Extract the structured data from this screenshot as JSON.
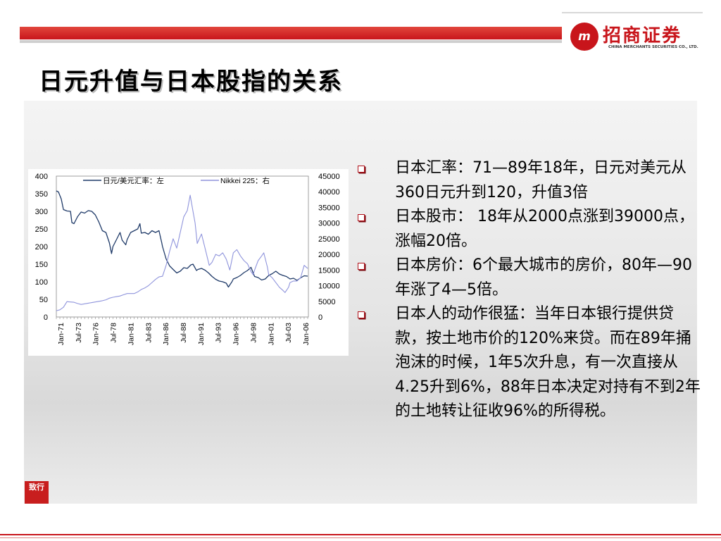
{
  "header": {
    "logo_mark": "m",
    "logo_cn": "招商证券",
    "logo_en": "CHINA MERCHANTS SECURITIES CO., LTD.",
    "title": "日元升值与日本股指的关系",
    "brand_color": "#c8151b"
  },
  "bullets": [
    "日本汇率：71—89年18年，日元对美元从360日元升到120，升值3倍",
    "日本股市： 18年从2000点涨到39000点，涨幅20倍。",
    "日本房价：6个最大城市的房价，80年—90年涨了4—5倍。",
    "日本人的动作很猛：当年日本银行提供贷款，按土地市价的120%来贷。而在89年捅泡沫的时候，1年5次升息，有一次直接从4.25升到6%，88年日本决定对持有不到2年的土地转让征收96%的所得税。"
  ],
  "stamp": "致行",
  "chart_data": {
    "type": "line",
    "categories": [
      "Jan-71",
      "Jul-73",
      "Jan-76",
      "Jul-78",
      "Jan-81",
      "Jul-83",
      "Jan-86",
      "Jul-88",
      "Jan-91",
      "Jul-93",
      "Jan-96",
      "Jul-98",
      "Jan-01",
      "Jul-03",
      "Jan-06"
    ],
    "y_left_ticks": [
      "400",
      "350",
      "300",
      "250",
      "200",
      "150",
      "100",
      "50",
      "0"
    ],
    "y_right_ticks": [
      "45000",
      "40000",
      "35000",
      "30000",
      "25000",
      "20000",
      "15000",
      "10000",
      "5000",
      "0"
    ],
    "ylim_left": [
      0,
      400
    ],
    "ylim_right": [
      0,
      45000
    ],
    "legend_position": "top",
    "series": [
      {
        "name": "日元/美元汇率：左",
        "axis": "left",
        "color": "#1f3a68",
        "x": [
          1971,
          1971.3,
          1971.7,
          1972,
          1972.5,
          1973,
          1973.2,
          1973.5,
          1974,
          1974.5,
          1975,
          1975.5,
          1976,
          1976.5,
          1977,
          1977.5,
          1978,
          1978.5,
          1978.8,
          1979,
          1979.5,
          1980,
          1980.3,
          1980.8,
          1981,
          1981.5,
          1982,
          1982.5,
          1982.8,
          1983,
          1983.5,
          1984,
          1984.5,
          1985,
          1985.5,
          1985.9,
          1986,
          1986.5,
          1987,
          1987.5,
          1988,
          1988.5,
          1989,
          1989.5,
          1990,
          1990.3,
          1990.8,
          1991,
          1991.5,
          1992,
          1992.5,
          1993,
          1993.5,
          1994,
          1994.5,
          1995,
          1995.3,
          1995.8,
          1996,
          1996.5,
          1997,
          1997.5,
          1998,
          1998.5,
          1998.9,
          1999,
          1999.5,
          2000,
          2000.5,
          2001,
          2001.5,
          2002,
          2002.5,
          2003,
          2003.5,
          2004,
          2004.5,
          2005,
          2005.5,
          2006,
          2006.5
        ],
        "values": [
          358,
          355,
          335,
          305,
          301,
          300,
          268,
          265,
          285,
          298,
          295,
          302,
          300,
          290,
          270,
          245,
          240,
          210,
          180,
          200,
          220,
          240,
          218,
          205,
          220,
          240,
          245,
          250,
          265,
          238,
          240,
          235,
          245,
          240,
          245,
          210,
          200,
          165,
          145,
          135,
          125,
          130,
          140,
          138,
          148,
          150,
          132,
          135,
          138,
          133,
          125,
          115,
          107,
          102,
          100,
          96,
          85,
          100,
          108,
          112,
          118,
          126,
          132,
          141,
          120,
          115,
          112,
          105,
          108,
          118,
          123,
          130,
          122,
          118,
          115,
          108,
          110,
          104,
          111,
          117,
          116
        ]
      },
      {
        "name": "Nikkei 225：右",
        "axis": "right",
        "color": "#8f94dc",
        "x": [
          1971,
          1971.5,
          1972,
          1972.5,
          1973,
          1973.5,
          1974,
          1974.5,
          1975,
          1975.5,
          1976,
          1976.5,
          1977,
          1977.5,
          1978,
          1978.5,
          1979,
          1979.5,
          1980,
          1980.5,
          1981,
          1981.5,
          1982,
          1982.5,
          1983,
          1983.5,
          1984,
          1984.5,
          1985,
          1985.5,
          1986,
          1986.5,
          1987,
          1987.5,
          1988,
          1988.5,
          1989,
          1989.5,
          1989.9,
          1990.2,
          1990.6,
          1990.9,
          1991.2,
          1991.5,
          1992,
          1992.6,
          1993,
          1993.5,
          1994,
          1994.5,
          1995,
          1995.5,
          1996,
          1996.5,
          1997,
          1997.5,
          1998,
          1998.5,
          1998.8,
          1999,
          1999.5,
          2000,
          2000.3,
          2000.8,
          2001,
          2001.5,
          2002,
          2002.5,
          2003,
          2003.3,
          2003.8,
          2004,
          2004.5,
          2005,
          2005.5,
          2006,
          2006.5
        ],
        "values": [
          2000,
          2300,
          3100,
          4900,
          4800,
          4700,
          4300,
          4000,
          4200,
          4400,
          4600,
          4800,
          5000,
          5200,
          5500,
          6000,
          6300,
          6500,
          6700,
          7100,
          7500,
          7500,
          7500,
          8000,
          8800,
          9300,
          10000,
          11000,
          12000,
          12800,
          13000,
          16500,
          21000,
          25000,
          22000,
          27000,
          32000,
          34000,
          38900,
          35000,
          30000,
          23500,
          25000,
          26500,
          22000,
          16500,
          17500,
          20000,
          19500,
          20500,
          18500,
          15000,
          20500,
          21500,
          19500,
          18000,
          17000,
          14500,
          13500,
          15000,
          18000,
          19500,
          20500,
          16000,
          13500,
          12500,
          11000,
          9500,
          8500,
          7800,
          9500,
          11000,
          11500,
          11500,
          12500,
          16500,
          15500
        ]
      }
    ]
  }
}
